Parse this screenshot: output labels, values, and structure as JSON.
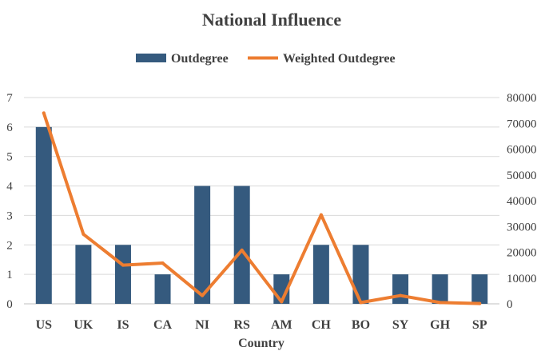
{
  "chart_data": {
    "type": "bar",
    "title": "National Influence",
    "xlabel": "Country",
    "ylabel": "",
    "y2label": "",
    "categories": [
      "US",
      "UK",
      "IS",
      "CA",
      "NI",
      "RS",
      "AM",
      "CH",
      "BO",
      "SY",
      "GH",
      "SP"
    ],
    "ylim": [
      0,
      7
    ],
    "y_ticks": [
      0,
      1,
      2,
      3,
      4,
      5,
      6,
      7
    ],
    "y2lim": [
      0,
      80000
    ],
    "y2_ticks": [
      0,
      10000,
      20000,
      30000,
      40000,
      50000,
      60000,
      70000,
      80000
    ],
    "grid": true,
    "legend_position": "top",
    "series": [
      {
        "name": "Outdegree",
        "type": "bar",
        "axis": "left",
        "color": "#355a7e",
        "values": [
          6,
          2,
          2,
          1,
          4,
          4,
          1,
          2,
          2,
          1,
          1,
          1
        ]
      },
      {
        "name": "Weighted Outdegree",
        "type": "line",
        "axis": "right",
        "color": "#ed7d31",
        "values": [
          74000,
          27000,
          15000,
          15800,
          3200,
          20800,
          800,
          34500,
          500,
          3200,
          500,
          100
        ]
      }
    ]
  }
}
